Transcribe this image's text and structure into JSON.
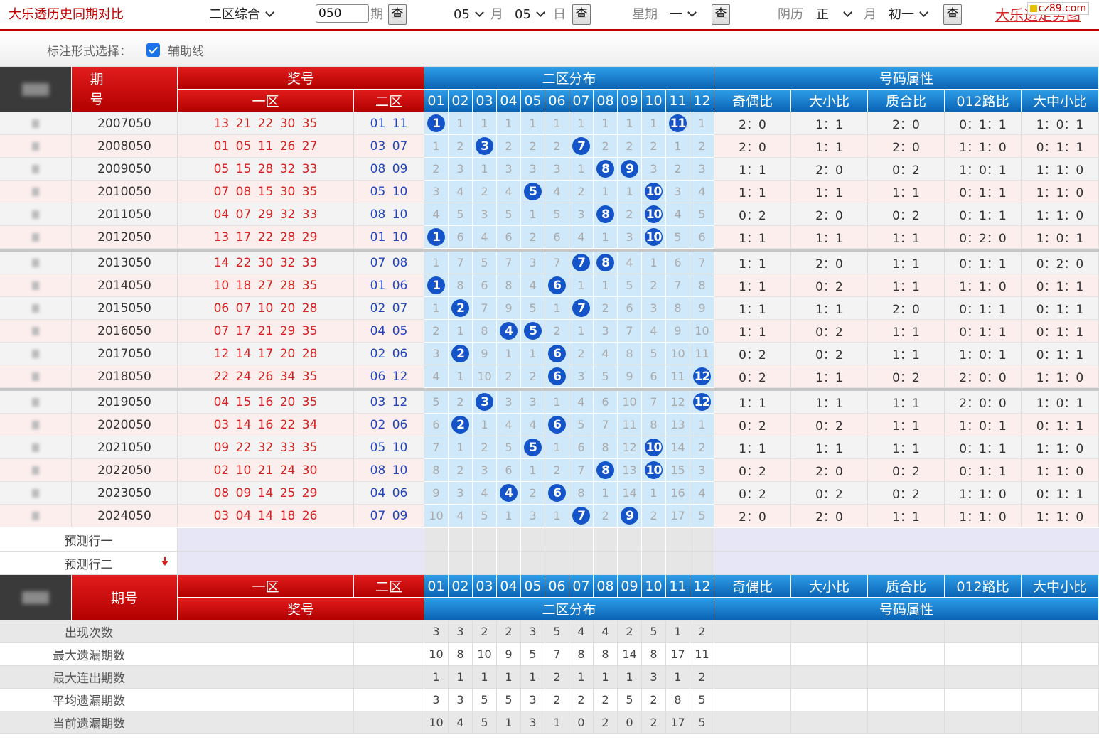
{
  "header": {
    "title": "大乐透历史同期对比",
    "zone_select": "二区综合",
    "issue_value": "050",
    "issue_label": "期",
    "query": "查",
    "month_value": "05",
    "month_label": "月",
    "day_value": "05",
    "day_label": "日",
    "weekday_label": "星期",
    "weekday_value": "一",
    "lunar_label": "阴历",
    "lunar_month_value": "正",
    "lunar_month_label": "月",
    "lunar_day_value": "初一",
    "link_text": "大乐透走势图",
    "logo_text": "cz89.com"
  },
  "options": {
    "label": "标注形式选择：",
    "checkbox_label": "辅助线",
    "checked": true
  },
  "table": {
    "headers": {
      "issue": "期号",
      "sort": "排序",
      "prize": "奖号",
      "zone1": "一区",
      "zone2": "二区",
      "distribution": "二区分布",
      "attributes": "号码属性",
      "cols": [
        "01",
        "02",
        "03",
        "04",
        "05",
        "06",
        "07",
        "08",
        "09",
        "10",
        "11",
        "12"
      ],
      "attr_cols": [
        "奇偶比",
        "大小比",
        "质合比",
        "012路比",
        "大中小比"
      ]
    },
    "rows": [
      {
        "issue": "2007050",
        "z1": "13 21 22 30 35",
        "z2": "01 11",
        "dist": [
          "1",
          "1",
          "1",
          "1",
          "1",
          "1",
          "1",
          "1",
          "1",
          "1",
          "11",
          "1"
        ],
        "hits": [
          0,
          10
        ],
        "attrs": [
          "2：0",
          "1：1",
          "2：0",
          "0：1：1",
          "1：0：1"
        ]
      },
      {
        "issue": "2008050",
        "z1": "01 05 11 26 27",
        "z2": "03 07",
        "dist": [
          "1",
          "2",
          "3",
          "2",
          "2",
          "2",
          "7",
          "2",
          "2",
          "2",
          "1",
          "2"
        ],
        "hits": [
          2,
          6
        ],
        "attrs": [
          "2：0",
          "1：1",
          "2：0",
          "1：1：0",
          "0：1：1"
        ]
      },
      {
        "issue": "2009050",
        "z1": "05 15 28 32 33",
        "z2": "08 09",
        "dist": [
          "2",
          "3",
          "1",
          "3",
          "3",
          "3",
          "1",
          "8",
          "9",
          "3",
          "2",
          "3"
        ],
        "hits": [
          7,
          8
        ],
        "attrs": [
          "1：1",
          "2：0",
          "0：2",
          "1：0：1",
          "1：1：0"
        ]
      },
      {
        "issue": "2010050",
        "z1": "07 08 15 30 35",
        "z2": "05 10",
        "dist": [
          "3",
          "4",
          "2",
          "4",
          "5",
          "4",
          "2",
          "1",
          "1",
          "10",
          "3",
          "4"
        ],
        "hits": [
          4,
          9
        ],
        "attrs": [
          "1：1",
          "1：1",
          "1：1",
          "0：1：1",
          "1：1：0"
        ]
      },
      {
        "issue": "2011050",
        "z1": "04 07 29 32 33",
        "z2": "08 10",
        "dist": [
          "4",
          "5",
          "3",
          "5",
          "1",
          "5",
          "3",
          "8",
          "2",
          "10",
          "4",
          "5"
        ],
        "hits": [
          7,
          9
        ],
        "attrs": [
          "0：2",
          "2：0",
          "0：2",
          "0：1：1",
          "1：1：0"
        ]
      },
      {
        "issue": "2012050",
        "z1": "13 17 22 28 29",
        "z2": "01 10",
        "dist": [
          "1",
          "6",
          "4",
          "6",
          "2",
          "6",
          "4",
          "1",
          "3",
          "10",
          "5",
          "6"
        ],
        "hits": [
          0,
          9
        ],
        "attrs": [
          "1：1",
          "1：1",
          "1：1",
          "0：2：0",
          "1：0：1"
        ]
      },
      {
        "issue": "2013050",
        "z1": "14 22 30 32 33",
        "z2": "07 08",
        "dist": [
          "1",
          "7",
          "5",
          "7",
          "3",
          "7",
          "7",
          "8",
          "4",
          "1",
          "6",
          "7"
        ],
        "hits": [
          6,
          7
        ],
        "attrs": [
          "1：1",
          "2：0",
          "1：1",
          "0：1：1",
          "0：2：0"
        ]
      },
      {
        "issue": "2014050",
        "z1": "10 18 27 28 35",
        "z2": "01 06",
        "dist": [
          "1",
          "8",
          "6",
          "8",
          "4",
          "6",
          "1",
          "1",
          "5",
          "2",
          "7",
          "8"
        ],
        "hits": [
          0,
          5
        ],
        "attrs": [
          "1：1",
          "0：2",
          "1：1",
          "1：1：0",
          "0：1：1"
        ]
      },
      {
        "issue": "2015050",
        "z1": "06 07 10 20 28",
        "z2": "02 07",
        "dist": [
          "1",
          "2",
          "7",
          "9",
          "5",
          "1",
          "7",
          "2",
          "6",
          "3",
          "8",
          "9"
        ],
        "hits": [
          1,
          6
        ],
        "attrs": [
          "1：1",
          "1：1",
          "2：0",
          "0：1：1",
          "0：1：1"
        ]
      },
      {
        "issue": "2016050",
        "z1": "07 17 21 29 35",
        "z2": "04 05",
        "dist": [
          "2",
          "1",
          "8",
          "4",
          "5",
          "2",
          "1",
          "3",
          "7",
          "4",
          "9",
          "10"
        ],
        "hits": [
          3,
          4
        ],
        "attrs": [
          "1：1",
          "0：2",
          "1：1",
          "0：1：1",
          "0：1：1"
        ]
      },
      {
        "issue": "2017050",
        "z1": "12 14 17 20 28",
        "z2": "02 06",
        "dist": [
          "3",
          "2",
          "9",
          "1",
          "1",
          "6",
          "2",
          "4",
          "8",
          "5",
          "10",
          "11"
        ],
        "hits": [
          1,
          5
        ],
        "attrs": [
          "0：2",
          "0：2",
          "1：1",
          "1：0：1",
          "0：1：1"
        ]
      },
      {
        "issue": "2018050",
        "z1": "22 24 26 34 35",
        "z2": "06 12",
        "dist": [
          "4",
          "1",
          "10",
          "2",
          "2",
          "6",
          "3",
          "5",
          "9",
          "6",
          "11",
          "12"
        ],
        "hits": [
          5,
          11
        ],
        "attrs": [
          "0：2",
          "1：1",
          "0：2",
          "2：0：0",
          "1：1：0"
        ]
      },
      {
        "issue": "2019050",
        "z1": "04 15 16 20 35",
        "z2": "03 12",
        "dist": [
          "5",
          "2",
          "3",
          "3",
          "3",
          "1",
          "4",
          "6",
          "10",
          "7",
          "12",
          "12"
        ],
        "hits": [
          2,
          11
        ],
        "attrs": [
          "1：1",
          "1：1",
          "1：1",
          "2：0：0",
          "1：0：1"
        ]
      },
      {
        "issue": "2020050",
        "z1": "03 14 16 22 34",
        "z2": "02 06",
        "dist": [
          "6",
          "2",
          "1",
          "4",
          "4",
          "6",
          "5",
          "7",
          "11",
          "8",
          "13",
          "1"
        ],
        "hits": [
          1,
          5
        ],
        "attrs": [
          "0：2",
          "0：2",
          "1：1",
          "1：0：1",
          "0：1：1"
        ]
      },
      {
        "issue": "2021050",
        "z1": "09 22 32 33 35",
        "z2": "05 10",
        "dist": [
          "7",
          "1",
          "2",
          "5",
          "5",
          "1",
          "6",
          "8",
          "12",
          "10",
          "14",
          "2"
        ],
        "hits": [
          4,
          9
        ],
        "attrs": [
          "1：1",
          "1：1",
          "1：1",
          "0：1：1",
          "1：1：0"
        ]
      },
      {
        "issue": "2022050",
        "z1": "02 10 21 24 30",
        "z2": "08 10",
        "dist": [
          "8",
          "2",
          "3",
          "6",
          "1",
          "2",
          "7",
          "8",
          "13",
          "10",
          "15",
          "3"
        ],
        "hits": [
          7,
          9
        ],
        "attrs": [
          "0：2",
          "2：0",
          "0：2",
          "0：1：1",
          "1：1：0"
        ]
      },
      {
        "issue": "2023050",
        "z1": "08 09 14 25 29",
        "z2": "04 06",
        "dist": [
          "9",
          "3",
          "4",
          "4",
          "2",
          "6",
          "8",
          "1",
          "14",
          "1",
          "16",
          "4"
        ],
        "hits": [
          3,
          5
        ],
        "attrs": [
          "0：2",
          "0：2",
          "0：2",
          "1：1：0",
          "0：1：1"
        ]
      },
      {
        "issue": "2024050",
        "z1": "03 04 14 18 26",
        "z2": "07 09",
        "dist": [
          "10",
          "4",
          "5",
          "1",
          "3",
          "1",
          "7",
          "2",
          "9",
          "2",
          "17",
          "5"
        ],
        "hits": [
          6,
          8
        ],
        "attrs": [
          "2：0",
          "2：0",
          "1：1",
          "1：1：0",
          "1：1：0"
        ]
      }
    ],
    "predict": [
      "预测行一",
      "预测行二"
    ],
    "stats": [
      {
        "label": "出现次数",
        "values": [
          "3",
          "3",
          "2",
          "2",
          "3",
          "5",
          "4",
          "4",
          "2",
          "5",
          "1",
          "2"
        ]
      },
      {
        "label": "最大遗漏期数",
        "values": [
          "10",
          "8",
          "10",
          "9",
          "5",
          "7",
          "8",
          "8",
          "14",
          "8",
          "17",
          "11"
        ]
      },
      {
        "label": "最大连出期数",
        "values": [
          "1",
          "1",
          "1",
          "1",
          "1",
          "2",
          "1",
          "1",
          "1",
          "3",
          "1",
          "2"
        ]
      },
      {
        "label": "平均遗漏期数",
        "values": [
          "3",
          "3",
          "5",
          "5",
          "3",
          "2",
          "2",
          "2",
          "5",
          "2",
          "8",
          "5"
        ]
      },
      {
        "label": "当前遗漏期数",
        "values": [
          "10",
          "4",
          "5",
          "1",
          "3",
          "1",
          "0",
          "2",
          "0",
          "2",
          "17",
          "5"
        ]
      }
    ]
  },
  "colors": {
    "accent_red": "#c00000",
    "header_blue": "#1478c8",
    "ball_blue": "#1554c8",
    "dist_bg": "#cfe9fb",
    "row_pink": "#fdeeee",
    "row_gray": "#f3f3f3"
  }
}
